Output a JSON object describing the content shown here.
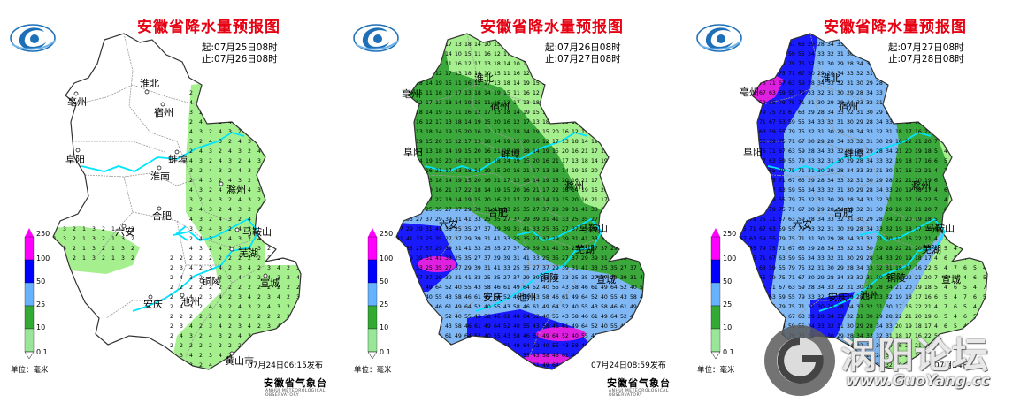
{
  "panels": [
    {
      "title": "安徽省降水量预报图",
      "start": "起:07月25日08时",
      "end": "止:07月26日08时",
      "issued": "07月24日06:15发布",
      "cities": [
        {
          "name": "淮北"
        },
        {
          "name": "亳州"
        },
        {
          "name": "宿州"
        },
        {
          "name": "阜阳"
        },
        {
          "name": "蚌埠"
        },
        {
          "name": "淮南"
        },
        {
          "name": "滁州"
        },
        {
          "name": "六安"
        },
        {
          "name": "合肥"
        },
        {
          "name": "马鞍山"
        },
        {
          "name": "芜湖"
        },
        {
          "name": "铜陵"
        },
        {
          "name": "宣城"
        },
        {
          "name": "安庆"
        },
        {
          "name": "池州"
        },
        {
          "name": "黄山市"
        }
      ]
    },
    {
      "title": "安徽省降水量预报图",
      "start": "起:07月26日08时",
      "end": "止:07月27日08时",
      "issued": "07月24日08:59发布",
      "cities": [
        {
          "name": "淮北"
        },
        {
          "name": "亳州"
        },
        {
          "name": "宿州"
        },
        {
          "name": "阜阳"
        },
        {
          "name": "蚌埠"
        },
        {
          "name": "滁州"
        },
        {
          "name": "六安"
        },
        {
          "name": "合肥"
        },
        {
          "name": "马鞍山"
        },
        {
          "name": "芜湖"
        },
        {
          "name": "铜陵"
        },
        {
          "name": "宣城"
        },
        {
          "name": "池州"
        },
        {
          "name": "安庆"
        }
      ]
    },
    {
      "title": "安徽省降水量预报图",
      "start": "起:07月27日08时",
      "end": "止:07月28日08时",
      "issued": "07月24日",
      "cities": [
        {
          "name": "淮北"
        },
        {
          "name": "亳州"
        },
        {
          "name": "宿州"
        },
        {
          "name": "阜阳"
        },
        {
          "name": "蚌埠"
        },
        {
          "name": "滁州"
        },
        {
          "name": "六安"
        },
        {
          "name": "合肥"
        },
        {
          "name": "马鞍山"
        },
        {
          "name": "芜湖"
        },
        {
          "name": "铜陵"
        },
        {
          "name": "宣城"
        },
        {
          "name": "池州"
        },
        {
          "name": "安庆"
        }
      ]
    }
  ],
  "legend": {
    "ticks": [
      "250",
      "100",
      "50",
      "25",
      "10",
      "0.1"
    ],
    "colors": [
      "#ff00ff",
      "#0000ff",
      "#66b2ff",
      "#33aa33",
      "#99e699"
    ]
  },
  "unit": "单位：毫米",
  "agency": "安徽省气象台",
  "agency_en": "ANHUI METEOROLOGICAL OBSERVATORY",
  "watermark": {
    "title": "涡阳论坛",
    "url": "www.GuoYang.cc"
  },
  "colors": {
    "title": "#e60012",
    "river": "#00e5ff",
    "light": "#a6ef8f",
    "moderate": "#3aa83a",
    "heavy": "#7fb8f5",
    "rainstorm": "#1a1aff",
    "extreme": "#e020e0"
  }
}
